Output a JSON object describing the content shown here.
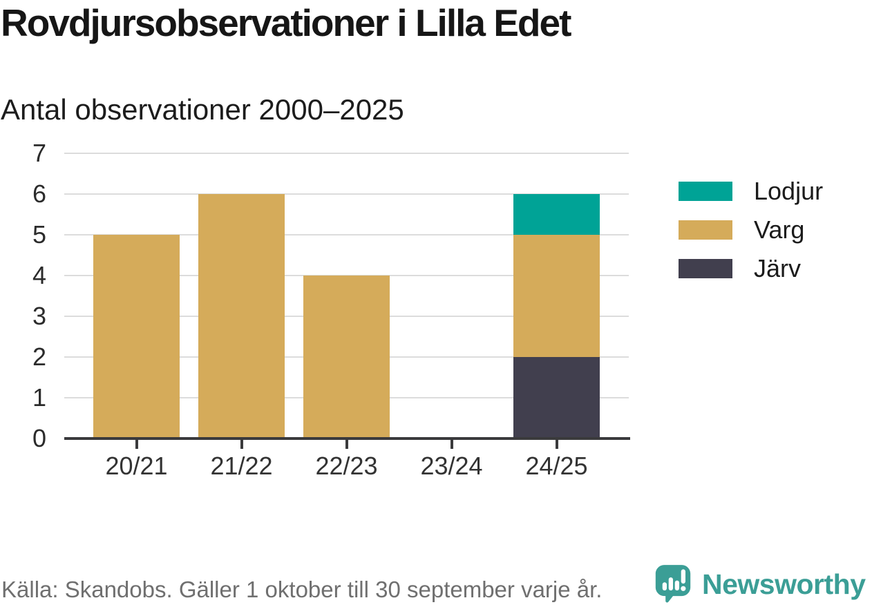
{
  "chart_data": {
    "type": "bar",
    "stacked": true,
    "title": "Rovdjursobservationer i Lilla Edet",
    "subtitle": "Antal observationer 2000–2025",
    "categories": [
      "20/21",
      "21/22",
      "22/23",
      "23/24",
      "24/25"
    ],
    "series": [
      {
        "name": "Lodjur",
        "color": "#00A396",
        "values": [
          0,
          0,
          0,
          0,
          1
        ]
      },
      {
        "name": "Varg",
        "color": "#D5AB5A",
        "values": [
          5,
          6,
          4,
          0,
          3
        ]
      },
      {
        "name": "Järv",
        "color": "#413F4E",
        "values": [
          0,
          0,
          0,
          0,
          2
        ]
      }
    ],
    "stack_order_bottom_to_top": [
      "Järv",
      "Varg",
      "Lodjur"
    ],
    "xlabel": "",
    "ylabel": "",
    "ylim": [
      0,
      7
    ],
    "yticks": [
      0,
      1,
      2,
      3,
      4,
      5,
      6,
      7
    ],
    "grid": true,
    "legend_position": "right"
  },
  "footer": {
    "source": "Källa: Skandobs. Gäller 1 oktober till 30 september varje år.",
    "brand": "Newsworthy",
    "brand_color": "#3B9E96"
  }
}
